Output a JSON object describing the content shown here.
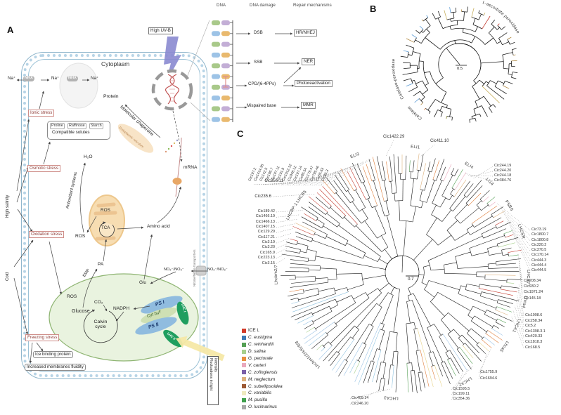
{
  "panelA": {
    "label": "A",
    "cytoplasm": "Cytoplasm",
    "high_uvb": "High UV-B",
    "na_out": "Na⁺",
    "nhx1": "NHX",
    "na_mid": "Na⁺",
    "nhx2": "NHX",
    "na_in": "Na⁺",
    "stress_ionic": "Ionic stress",
    "stress_osmotic": "Osmotic stress",
    "stress_oxidation": "Oxidation stress",
    "stress_freezing": "Freezing stress",
    "high_salinity": "High salinity",
    "cold": "Cold",
    "solutes": [
      "Proline",
      "Raffinose",
      "Starch"
    ],
    "compatible_solutes": "Compatible solutes",
    "protein": "Protein",
    "molecular_chaperone": "Molecular chaperone",
    "er": "Endoplasmic reticulum",
    "mrna": "mRNA",
    "h2o": "H₂O",
    "antioxidant": "Antioxidant systems",
    "ros_mito": "ROS",
    "ros_cyto": "ROS",
    "ros_chloro": "ROS",
    "tca": "TCA",
    "pa": "PA",
    "emp": "EMP",
    "amino_acid": "Amino acid",
    "glu": "Glu",
    "glucose": "Glucose",
    "co2": "CO₂",
    "calvin": "Calvin cycle",
    "nadph": "NADPH",
    "ps1": "PS I",
    "cytb6f": "Cyt b₆/f",
    "ps2": "PS II",
    "lhc1": "LHC I",
    "lhc2": "LHC II",
    "no2_inner": "NO₂⁻/NO₃⁻",
    "no2_outer": "NO₂⁻/NO₃⁻",
    "transporters": "Nitrate/Nitrite transporters",
    "ice_binding": "Ice binding protein",
    "membrane_fluidity": "Increased membranes fluidity",
    "fluctuations_line1": "Fluctuations",
    "fluctuations_line2": "in light intensity"
  },
  "dna": {
    "headers": [
      "DNA",
      "DNA damage",
      "Repair mechanisms"
    ],
    "rows": [
      {
        "damage": "DSB",
        "repair": "HR/NHEJ"
      },
      {
        "damage": "SSB",
        "repair": "NER"
      },
      {
        "damage": "CPD/(6-4PPs)",
        "repair": "Photoreactivation"
      },
      {
        "damage": "Mispaired base",
        "repair": "MMR"
      }
    ]
  },
  "panelB": {
    "label": "B",
    "scale": "0.5",
    "arc_labels": [
      "L-ascorbate peroxidase",
      "Catalase-peroxidase",
      "Catalase"
    ]
  },
  "panelC": {
    "label": "C",
    "scale": "0.7",
    "arc_labels": [
      "LHCBP-1",
      "LHCB5",
      "ELI3",
      "ELI1",
      "ELI4",
      "LI14",
      "PSBS",
      "LHCSR",
      "LHCA7",
      "Lhca4",
      "LHCA1",
      "Lhca5",
      "LHCA2",
      "LHCA3",
      "Lhcbm1/2/4/5/9/8",
      "Lhcbm2/7"
    ],
    "fan_labels": [
      "Cic197.2",
      "Cic1414.35",
      "Cic142.5",
      "Cic196.7",
      "Cic197.11",
      "Cic101.9",
      "Cic1012.12",
      "Cic948.12",
      "Cic197.14",
      "Cic85.54",
      "Cic179.47",
      "Cic795.46",
      "Cic55.63",
      "Cic85.3"
    ],
    "left_labels": [
      "Cic189.42",
      "Cic1466.19",
      "Cic1466.13",
      "Cic1407.15",
      "Cic129.29",
      "Cic117.21",
      "Cic3.19",
      "Cic3.20",
      "Cic165.9",
      "Cic223.13",
      "Cic3.15"
    ],
    "right_top_labels": [
      "Cic244.19",
      "Cic244.20",
      "Cic244.18",
      "Cic384.76"
    ],
    "right_mid_labels": [
      "Cic73.19",
      "Cic1800.7",
      "Cic1800.8",
      "Cic320.2",
      "Cic370.5",
      "Cic170.14",
      "Cic444.3",
      "Cic444.4",
      "Cic444.5"
    ],
    "right_labels2": [
      "Cic208.34",
      "Cic930.2",
      "Cic1971.24",
      "Cic145.18"
    ],
    "right_lower_labels": [
      "Cic1998.6",
      "Cic258.34",
      "Cic5.2",
      "Cic1398.3.1",
      "Cic420.33",
      "Cic1818.3",
      "Cic168.5"
    ],
    "bottom_right_labels": [
      "Cic1755.9",
      "Cic1694.6"
    ],
    "bottom_labels": [
      "Cic1595.5",
      "Cic199.11",
      "Cic354.36"
    ],
    "bottom_left_labels": [
      "Cic409.14",
      "Cic246.20"
    ],
    "callouts": {
      "c1422": "Cic1422.29",
      "c411": "Cic411.10",
      "c256": "Cic256.11",
      "c235": "Cic235.6"
    },
    "legend": [
      {
        "label": "ICE L",
        "color": "#d13b2a"
      },
      {
        "label": "C. eustigma",
        "color": "#3d7ab5"
      },
      {
        "label": "C. reinhardtii",
        "color": "#55a055"
      },
      {
        "label": "D. salina",
        "color": "#a8d08d"
      },
      {
        "label": "G. pectorale",
        "color": "#e8903f"
      },
      {
        "label": "V. carteri",
        "color": "#e9a9bd"
      },
      {
        "label": "C. zofingiensis",
        "color": "#7a5fa8"
      },
      {
        "label": "M. neglectum",
        "color": "#ddb27e"
      },
      {
        "label": "C. subellipsoidea",
        "color": "#9c5a35"
      },
      {
        "label": "C. variabilis",
        "color": "#eeeabf"
      },
      {
        "label": "M. pusilla",
        "color": "#3fa04d"
      },
      {
        "label": "O. lucimarinus",
        "color": "#a8a8a8"
      }
    ]
  }
}
